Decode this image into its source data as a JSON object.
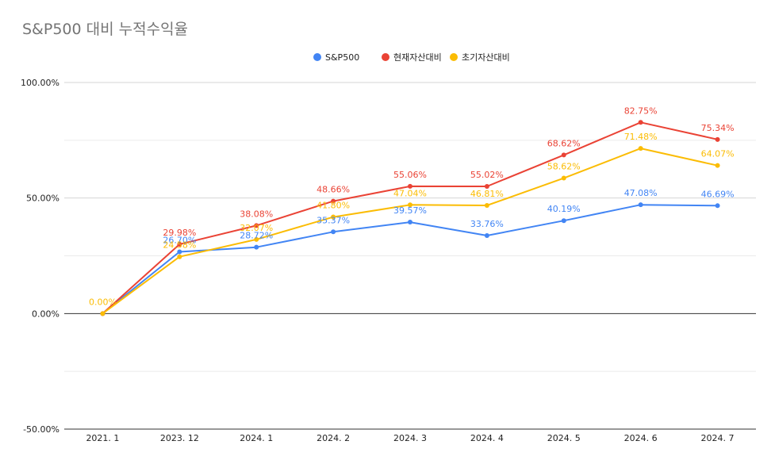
{
  "chart_data": {
    "type": "line",
    "title": "S&P500 대비 누적수익율",
    "categories": [
      "2021. 1",
      "2023. 12",
      "2024. 1",
      "2024. 2",
      "2024. 3",
      "2024. 4",
      "2024. 5",
      "2024. 6",
      "2024. 7"
    ],
    "ylim": [
      -50,
      100
    ],
    "yticks": [
      -50,
      0,
      50,
      100
    ],
    "ytick_labels": [
      "-50.00%",
      "0.00%",
      "50.00%",
      "100.00%"
    ],
    "grid": true,
    "legend_position": "top-center",
    "series": [
      {
        "name": "S&P500",
        "color": "#4285f4",
        "values": [
          0.0,
          26.7,
          28.72,
          35.37,
          39.57,
          33.76,
          40.19,
          47.08,
          46.69
        ],
        "labels": [
          "",
          "26.70%",
          "28.72%",
          "35.37%",
          "39.57%",
          "33.76%",
          "40.19%",
          "47.08%",
          "46.69%"
        ]
      },
      {
        "name": "현재자산대비",
        "color": "#ea4335",
        "values": [
          0.0,
          29.98,
          38.08,
          48.66,
          55.06,
          55.02,
          68.62,
          82.75,
          75.34
        ],
        "labels": [
          "",
          "29.98%",
          "38.08%",
          "48.66%",
          "55.06%",
          "55.02%",
          "68.62%",
          "82.75%",
          "75.34%"
        ]
      },
      {
        "name": "초기자산대비",
        "color": "#fbbc04",
        "values": [
          0.0,
          24.58,
          32.07,
          41.8,
          47.04,
          46.81,
          58.62,
          71.48,
          64.07
        ],
        "labels": [
          "0.00%",
          "24.58%",
          "32.07%",
          "41.80%",
          "47.04%",
          "46.81%",
          "58.62%",
          "71.48%",
          "64.07%"
        ]
      }
    ]
  }
}
